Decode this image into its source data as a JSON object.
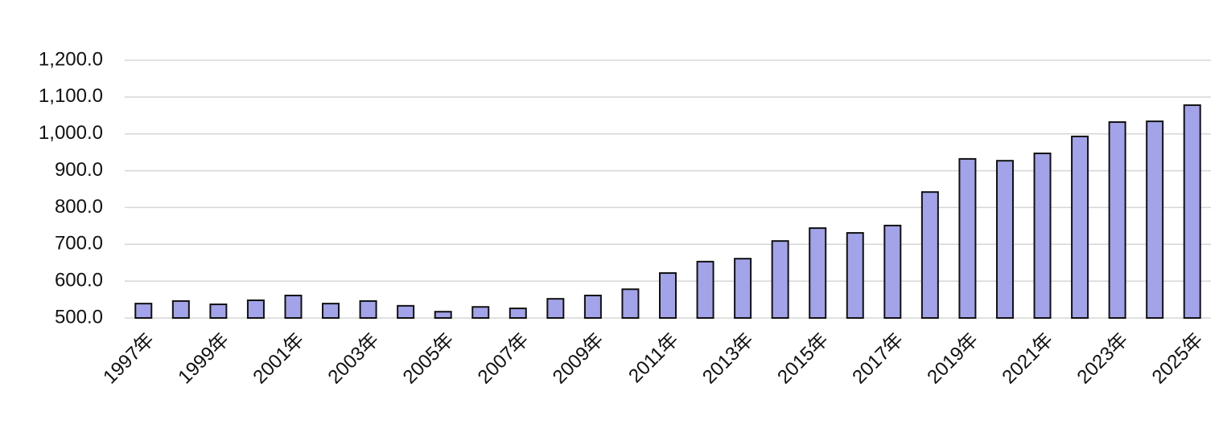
{
  "chart_data": {
    "type": "bar",
    "categories": [
      "1997年",
      null,
      "1999年",
      null,
      "2001年",
      null,
      "2003年",
      null,
      "2005年",
      null,
      "2007年",
      null,
      "2009年",
      null,
      "2011年",
      null,
      "2013年",
      null,
      "2015年",
      null,
      "2017年",
      null,
      "2019年",
      null,
      "2021年",
      null,
      "2023年",
      null,
      "2025年"
    ],
    "values": [
      539,
      546,
      537,
      548,
      561,
      539,
      546,
      533,
      517,
      530,
      526,
      552,
      561,
      578,
      622,
      653,
      661,
      709,
      744,
      731,
      751,
      842,
      932,
      927,
      947,
      993,
      1032,
      1034,
      1078
    ],
    "color": "#a3a3ea",
    "ylim": [
      500,
      1200
    ],
    "yticks": [
      {
        "value": 500,
        "label": "500.0"
      },
      {
        "value": 600,
        "label": "600.0"
      },
      {
        "value": 700,
        "label": "700.0"
      },
      {
        "value": 800,
        "label": "800.0"
      },
      {
        "value": 900,
        "label": "900.0"
      },
      {
        "value": 1000,
        "label": "1,000.0"
      },
      {
        "value": 1100,
        "label": "1,100.0"
      },
      {
        "value": 1200,
        "label": "1,200.0"
      }
    ],
    "grid": true
  }
}
